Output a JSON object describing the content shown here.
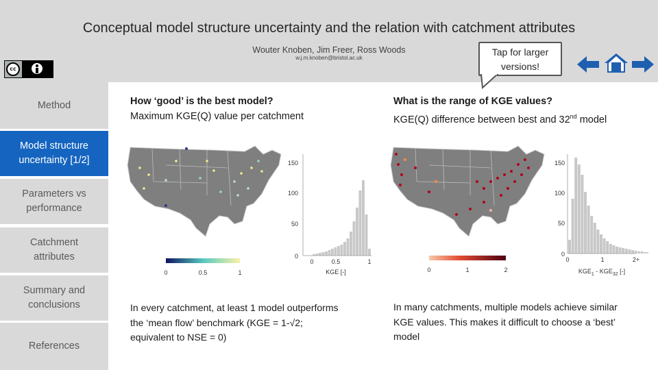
{
  "header": {
    "title": "Conceptual model structure uncertainty and the relation with catchment attributes",
    "authors": "Wouter Knoben, Jim Freer, Ross Woods",
    "email": "w.j.m.knoben@bristol.ac.uk",
    "license_badge": "cc-by-icon",
    "callout": "Tap for larger versions!"
  },
  "nav": {
    "icons": [
      "arrow-left-icon",
      "home-icon",
      "arrow-right-icon"
    ],
    "color": "#1f5fb0"
  },
  "sidebar": {
    "active_color": "#1565c0",
    "items": [
      {
        "label": "Method",
        "active": false
      },
      {
        "label": "Model structure uncertainty [1/2]",
        "active": true
      },
      {
        "label": "Parameters vs performance",
        "active": false
      },
      {
        "label": "Catchment attributes",
        "active": false
      },
      {
        "label": "Summary and conclusions",
        "active": false
      },
      {
        "label": "References",
        "active": false
      }
    ]
  },
  "panels": {
    "left": {
      "heading_line1": "How ‘good’ is the best model?",
      "heading_line2": "Maximum KGE(Q) value per catchment",
      "colorbar_ticks": [
        "0",
        "0.5",
        "1"
      ],
      "hist_yticks": [
        "0",
        "50",
        "100",
        "150"
      ],
      "hist_xticks": [
        "0",
        "0.5",
        "1"
      ],
      "hist_xlabel": "KGE [-]",
      "note": "In every catchment, at least 1 model outperforms the ‘mean flow’ benchmark (KGE = 1-√2; equivalent to NSE = 0)"
    },
    "right": {
      "heading_line1": "What is the range of KGE values?",
      "heading_line2_pre": "KGE(Q) difference between best and 32",
      "heading_line2_sup": "nd",
      "heading_line2_post": " model",
      "colorbar_ticks": [
        "0",
        "1",
        "2"
      ],
      "hist_yticks": [
        "0",
        "50",
        "100",
        "150"
      ],
      "hist_xticks": [
        "0",
        "1",
        "2+"
      ],
      "hist_xlabel_pre": "KGE",
      "hist_xlabel_sub1": "1",
      "hist_xlabel_mid": " - KGE",
      "hist_xlabel_sub2": "32",
      "hist_xlabel_post": " [-]",
      "note": "In many catchments, multiple models achieve similar KGE values. This makes it difficult to choose a ‘best’ model"
    }
  }
}
